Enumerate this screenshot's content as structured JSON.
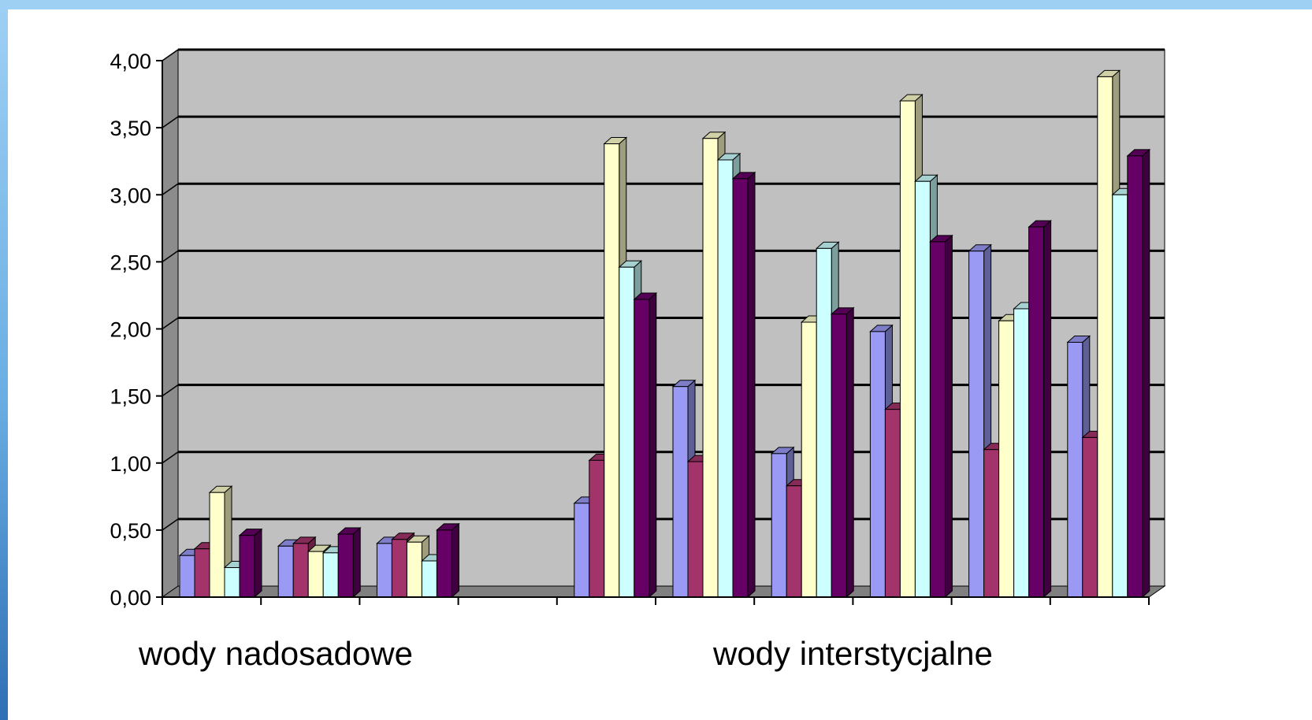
{
  "chart_data": {
    "type": "bar",
    "style": "3d-clustered-column",
    "y_ticks": [
      "0,00",
      "0,50",
      "1,00",
      "1,50",
      "2,00",
      "2,50",
      "3,00",
      "3,50",
      "4,00"
    ],
    "ylim": [
      0,
      4
    ],
    "grid": true,
    "legend": "none",
    "group_labels": [
      "wody nadosadowe",
      "wody interstycjalne"
    ],
    "categories": [
      "",
      "",
      "",
      "",
      "",
      "",
      "",
      "",
      "",
      ""
    ],
    "series": [
      {
        "color": "#9a9af4",
        "values": [
          0.31,
          0.38,
          0.4,
          null,
          0.7,
          1.57,
          1.07,
          1.98,
          2.58,
          1.9
        ]
      },
      {
        "color": "#a3336b",
        "values": [
          0.36,
          0.4,
          0.43,
          null,
          1.02,
          1.01,
          0.83,
          1.4,
          1.1,
          1.19
        ]
      },
      {
        "color": "#ffffcc",
        "values": [
          0.78,
          0.34,
          0.41,
          null,
          3.38,
          3.42,
          2.05,
          3.7,
          2.06,
          3.88
        ]
      },
      {
        "color": "#ccffff",
        "values": [
          0.22,
          0.33,
          0.27,
          null,
          2.46,
          3.26,
          2.6,
          3.1,
          2.15,
          3.0
        ]
      },
      {
        "color": "#660066",
        "values": [
          0.46,
          0.47,
          0.5,
          null,
          2.22,
          3.12,
          2.11,
          2.65,
          2.76,
          3.29
        ]
      }
    ]
  }
}
